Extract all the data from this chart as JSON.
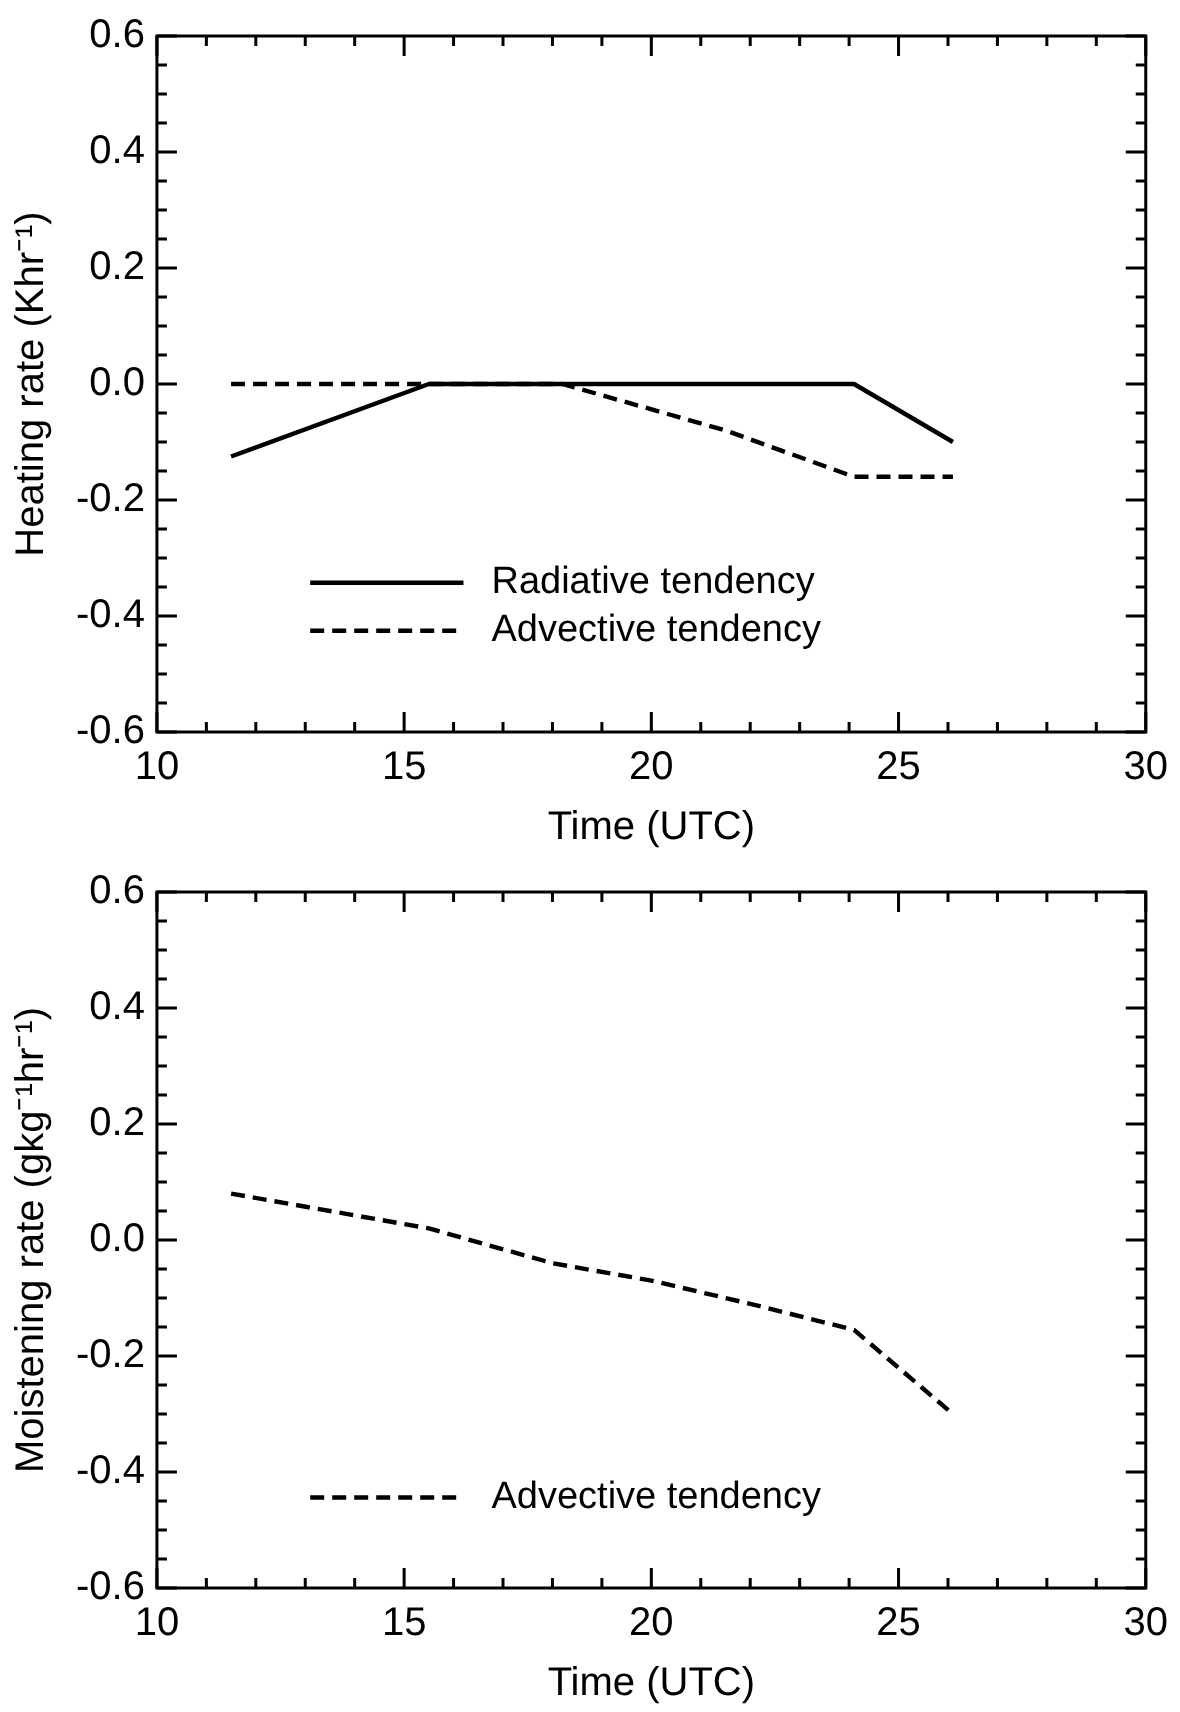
{
  "chart_data": [
    {
      "type": "line",
      "xlabel": "Time (UTC)",
      "ylabel": "Heating rate (Khr⁻¹)",
      "xlim": [
        10,
        30
      ],
      "ylim": [
        -0.6,
        0.6
      ],
      "xticks": [
        10,
        {
          "value": 11,
          "label": null
        },
        {
          "value": 12,
          "label": null
        },
        {
          "value": 13,
          "label": null
        },
        {
          "value": 14,
          "label": null
        },
        15,
        {
          "value": 16,
          "label": null
        },
        {
          "value": 17,
          "label": null
        },
        {
          "value": 18,
          "label": null
        },
        {
          "value": 19,
          "label": null
        },
        20,
        {
          "value": 21,
          "label": null
        },
        {
          "value": 22,
          "label": null
        },
        {
          "value": 23,
          "label": null
        },
        {
          "value": 24,
          "label": null
        },
        25,
        {
          "value": 26,
          "label": null
        },
        {
          "value": 27,
          "label": null
        },
        {
          "value": 28,
          "label": null
        },
        {
          "value": 29,
          "label": null
        },
        30
      ],
      "yticks": [
        {
          "value": -0.6,
          "label": "-0.6"
        },
        {
          "value": -0.55,
          "label": null
        },
        {
          "value": -0.5,
          "label": null
        },
        {
          "value": -0.45,
          "label": null
        },
        {
          "value": -0.4,
          "label": "-0.4"
        },
        {
          "value": -0.35,
          "label": null
        },
        {
          "value": -0.3,
          "label": null
        },
        {
          "value": -0.25,
          "label": null
        },
        {
          "value": -0.2,
          "label": "-0.2"
        },
        {
          "value": -0.15,
          "label": null
        },
        {
          "value": -0.1,
          "label": null
        },
        {
          "value": -0.05,
          "label": null
        },
        {
          "value": 0,
          "label": "0.0"
        },
        {
          "value": 0.05,
          "label": null
        },
        {
          "value": 0.1,
          "label": null
        },
        {
          "value": 0.15,
          "label": null
        },
        {
          "value": 0.2,
          "label": "0.2"
        },
        {
          "value": 0.25,
          "label": null
        },
        {
          "value": 0.3,
          "label": null
        },
        {
          "value": 0.35,
          "label": null
        },
        {
          "value": 0.4,
          "label": "0.4"
        },
        {
          "value": 0.45,
          "label": null
        },
        {
          "value": 0.5,
          "label": null
        },
        {
          "value": 0.55,
          "label": null
        },
        {
          "value": 0.6,
          "label": "0.6"
        }
      ],
      "legend": "bottom",
      "grid": false,
      "marker": "none",
      "series": [
        {
          "name": "Radiative tendency",
          "color": "#000000",
          "line_style": "solid",
          "x": [
            11.5,
            15.5,
            24.1,
            26.1
          ],
          "values": [
            -0.125,
            0,
            0,
            -0.1
          ]
        },
        {
          "name": "Advective tendency",
          "color": "#000000",
          "line_style": "dashed",
          "x": [
            11.5,
            15.5,
            18.2,
            21.5,
            24.1,
            26.1
          ],
          "values": [
            0,
            0,
            0,
            -0.08,
            -0.16,
            -0.16
          ]
        }
      ]
    },
    {
      "type": "line",
      "xlabel": "Time (UTC)",
      "ylabel": "Moistening rate (gkg⁻¹hr⁻¹)",
      "xlim": [
        10,
        30
      ],
      "ylim": [
        -0.6,
        0.6
      ],
      "xticks": [
        10,
        {
          "value": 11,
          "label": null
        },
        {
          "value": 12,
          "label": null
        },
        {
          "value": 13,
          "label": null
        },
        {
          "value": 14,
          "label": null
        },
        15,
        {
          "value": 16,
          "label": null
        },
        {
          "value": 17,
          "label": null
        },
        {
          "value": 18,
          "label": null
        },
        {
          "value": 19,
          "label": null
        },
        20,
        {
          "value": 21,
          "label": null
        },
        {
          "value": 22,
          "label": null
        },
        {
          "value": 23,
          "label": null
        },
        {
          "value": 24,
          "label": null
        },
        25,
        {
          "value": 26,
          "label": null
        },
        {
          "value": 27,
          "label": null
        },
        {
          "value": 28,
          "label": null
        },
        {
          "value": 29,
          "label": null
        },
        30
      ],
      "yticks": [
        {
          "value": -0.6,
          "label": "-0.6"
        },
        {
          "value": -0.55,
          "label": null
        },
        {
          "value": -0.5,
          "label": null
        },
        {
          "value": -0.45,
          "label": null
        },
        {
          "value": -0.4,
          "label": "-0.4"
        },
        {
          "value": -0.35,
          "label": null
        },
        {
          "value": -0.3,
          "label": null
        },
        {
          "value": -0.25,
          "label": null
        },
        {
          "value": -0.2,
          "label": "-0.2"
        },
        {
          "value": -0.15,
          "label": null
        },
        {
          "value": -0.1,
          "label": null
        },
        {
          "value": -0.05,
          "label": null
        },
        {
          "value": 0,
          "label": "0.0"
        },
        {
          "value": 0.05,
          "label": null
        },
        {
          "value": 0.1,
          "label": null
        },
        {
          "value": 0.15,
          "label": null
        },
        {
          "value": 0.2,
          "label": "0.2"
        },
        {
          "value": 0.25,
          "label": null
        },
        {
          "value": 0.3,
          "label": null
        },
        {
          "value": 0.35,
          "label": null
        },
        {
          "value": 0.4,
          "label": "0.4"
        },
        {
          "value": 0.45,
          "label": null
        },
        {
          "value": 0.5,
          "label": null
        },
        {
          "value": 0.55,
          "label": null
        },
        {
          "value": 0.6,
          "label": "0.6"
        }
      ],
      "legend": "bottom",
      "grid": false,
      "marker": "none",
      "series": [
        {
          "name": "Advective tendency",
          "color": "#000000",
          "line_style": "dashed",
          "x": [
            11.5,
            15.5,
            18,
            20,
            22,
            24.1,
            26.1
          ],
          "values": [
            0.08,
            0.02,
            -0.04,
            -0.07,
            -0.11,
            -0.155,
            -0.3
          ]
        }
      ]
    }
  ]
}
